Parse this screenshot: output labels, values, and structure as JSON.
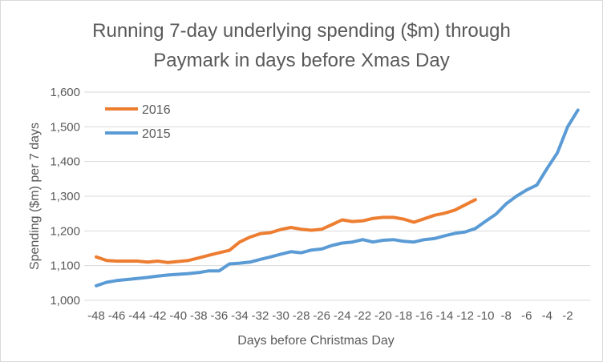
{
  "chart_data": {
    "type": "line",
    "title": "Running 7-day underlying spending ($m) through Paymark in days before Xmas Day",
    "title_lines": [
      "Running 7-day underlying spending ($m) through",
      "Paymark in days before Xmas Day"
    ],
    "xlabel": "Days before Christmas Day",
    "ylabel": "Spending ($m) per 7 days",
    "ylim": [
      1000,
      1600
    ],
    "yticks": [
      "1,000",
      "1,100",
      "1,200",
      "1,300",
      "1,400",
      "1,500",
      "1,600"
    ],
    "ytick_values": [
      1000,
      1100,
      1200,
      1300,
      1400,
      1500,
      1600
    ],
    "xticks": [
      -48,
      -46,
      -44,
      -42,
      -40,
      -38,
      -36,
      -34,
      -32,
      -30,
      -28,
      -26,
      -24,
      -22,
      -20,
      -18,
      -16,
      -14,
      -12,
      -10,
      -8,
      -6,
      -4,
      -2
    ],
    "grid": "horizontal",
    "legend_position": "top-left",
    "series": [
      {
        "name": "2016",
        "color": "#ed7d31",
        "x_start": -48,
        "values": [
          1125,
          1115,
          1113,
          1113,
          1113,
          1110,
          1113,
          1109,
          1112,
          1115,
          1122,
          1130,
          1137,
          1144,
          1168,
          1182,
          1192,
          1195,
          1204,
          1210,
          1205,
          1202,
          1205,
          1218,
          1232,
          1227,
          1229,
          1236,
          1239,
          1239,
          1234,
          1225,
          1235,
          1245,
          1251,
          1260,
          1275,
          1290
        ]
      },
      {
        "name": "2015",
        "color": "#5b9bd5",
        "x_start": -48,
        "values": [
          1042,
          1052,
          1057,
          1060,
          1063,
          1066,
          1070,
          1073,
          1075,
          1077,
          1080,
          1085,
          1085,
          1105,
          1107,
          1110,
          1118,
          1125,
          1133,
          1140,
          1137,
          1145,
          1148,
          1158,
          1165,
          1168,
          1175,
          1168,
          1173,
          1175,
          1170,
          1168,
          1175,
          1178,
          1186,
          1193,
          1197,
          1207,
          1228,
          1248,
          1278,
          1300,
          1318,
          1332,
          1380,
          1425,
          1500,
          1548
        ]
      }
    ]
  }
}
